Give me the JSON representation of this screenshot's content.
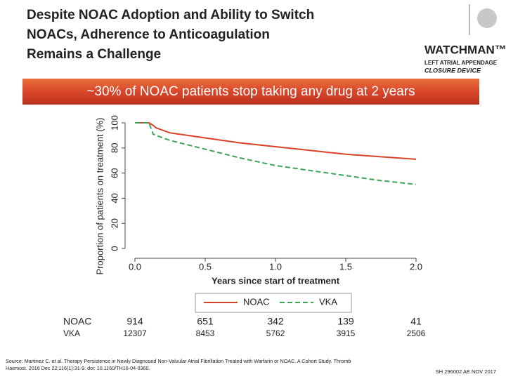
{
  "header": {
    "title_lines": [
      "Despite NOAC Adoption and Ability to Switch",
      "NOACs, Adherence to Anticoagulation",
      "Remains a Challenge"
    ]
  },
  "logo": {
    "brand": "WATCHMAN™",
    "lines": [
      "LEFT ATRIAL APPENDAGE",
      "CLOSURE DEVICE"
    ]
  },
  "banner": "~30% of NOAC patients stop taking any drug at 2 years",
  "chart_data": {
    "type": "line",
    "y_label": "Proportion of patients on treatment (%)",
    "x_label": "Years since start of treatment",
    "x": [
      0,
      0.1,
      0.13,
      0.15,
      0.25,
      0.5,
      0.75,
      1.0,
      1.25,
      1.5,
      1.75,
      2.0
    ],
    "series": [
      {
        "name": "NOAC",
        "color": "#d9412b",
        "dashed": false,
        "values": [
          100,
          100,
          98,
          96,
          92,
          88,
          84,
          81,
          78,
          75,
          73,
          71
        ]
      },
      {
        "name": "VKA",
        "color": "#3aa655",
        "dashed": true,
        "values": [
          100,
          100,
          91,
          90,
          86,
          79,
          72,
          66,
          62,
          58,
          54,
          51
        ]
      }
    ],
    "xlim": [
      0,
      2
    ],
    "xticks": [
      {
        "value": 0,
        "label": "0.0"
      },
      0.5,
      {
        "value": 1,
        "label": "1.0"
      },
      1.5,
      {
        "value": 2,
        "label": "2.0"
      }
    ],
    "ylim": [
      0,
      100
    ],
    "yticks": [
      0,
      20,
      40,
      60,
      80,
      100
    ],
    "grid": false
  },
  "risk_table": {
    "rows": [
      {
        "label": "NOAC",
        "values": [
          "914",
          "651",
          "342",
          "139",
          "41"
        ]
      },
      {
        "label": "VKA",
        "values": [
          "12307",
          "8453",
          "5762",
          "3915",
          "2506"
        ]
      }
    ]
  },
  "source": "Source: Martinez C. et al. Therapy Persistence in Newly Diagnosed Non-Valvular Atrial Fibrillation Treated with Warfarin or NOAC. A Cohort Study. Thromb Haemost. 2016 Dec 22;116(1):31-9. doi: 10.1160/TH16-04-0360.",
  "footer_code": "SH 296002 AE NOV 2017"
}
